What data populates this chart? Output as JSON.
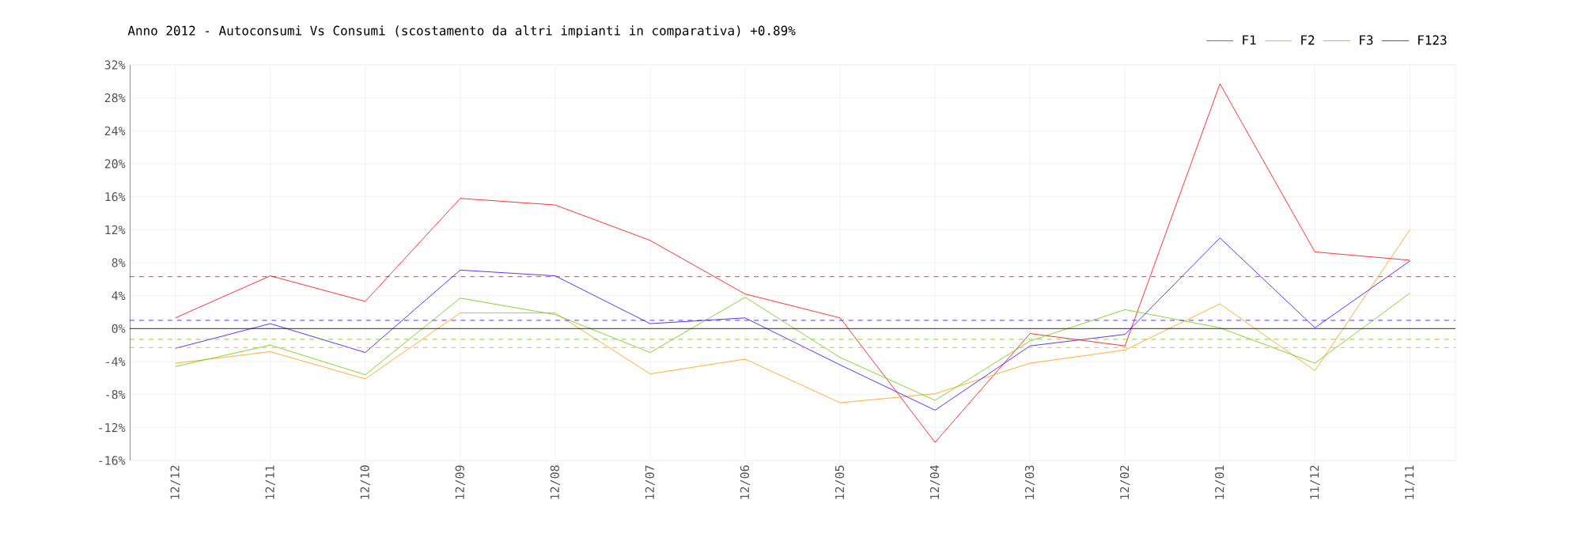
{
  "chart_data": {
    "type": "line",
    "title": "Anno 2012 - Autoconsumi Vs Consumi (scostamento da altri impianti in comparativa) +0.89%",
    "categories": [
      "12/12",
      "12/11",
      "12/10",
      "12/09",
      "12/08",
      "12/07",
      "12/06",
      "12/05",
      "12/04",
      "12/03",
      "12/02",
      "12/01",
      "11/12",
      "11/11"
    ],
    "series": [
      {
        "name": "F1",
        "color": "#ff0000",
        "values": [
          1.3,
          6.4,
          3.3,
          15.8,
          15.0,
          10.7,
          4.2,
          1.3,
          -13.8,
          -0.6,
          -2.1,
          29.7,
          9.3,
          8.3
        ]
      },
      {
        "name": "F2",
        "color": "#ff9900",
        "values": [
          -4.2,
          -2.8,
          -6.1,
          1.9,
          1.9,
          -5.5,
          -3.7,
          -9.0,
          -7.9,
          -4.2,
          -2.6,
          3.0,
          -5.1,
          12.0
        ]
      },
      {
        "name": "F3",
        "color": "#66cc00",
        "values": [
          -4.6,
          -2.0,
          -5.6,
          3.7,
          1.7,
          -2.9,
          3.8,
          -3.5,
          -8.7,
          -1.5,
          2.3,
          0.1,
          -4.2,
          4.3
        ]
      },
      {
        "name": "F123",
        "color": "#3300ff",
        "values": [
          -2.4,
          0.6,
          -2.9,
          7.1,
          6.4,
          0.6,
          1.3,
          -4.4,
          -9.9,
          -2.1,
          -0.7,
          11.0,
          0.1,
          8.2
        ]
      }
    ],
    "ref_lines": [
      {
        "axis": "y",
        "value": 6.3,
        "color": "#ff0000",
        "line_style": "dashed"
      },
      {
        "axis": "y",
        "value": 1.0,
        "color": "#3300ff",
        "line_style": "dashed"
      },
      {
        "axis": "y",
        "value": -1.3,
        "color": "#66cc00",
        "line_style": "dashed"
      },
      {
        "axis": "y",
        "value": -2.3,
        "color": "#ff9900",
        "line_style": "dashed"
      },
      {
        "axis": "y",
        "value": 0,
        "color": "#000000",
        "line_style": "solid"
      }
    ],
    "ylim": [
      -16,
      32
    ],
    "yticks": [
      {
        "value": -16,
        "label": "-16%"
      },
      {
        "value": -12,
        "label": "-12%"
      },
      {
        "value": -8,
        "label": "-8%"
      },
      {
        "value": -4,
        "label": "-4%"
      },
      {
        "value": 0,
        "label": "0%"
      },
      {
        "value": 4,
        "label": "4%"
      },
      {
        "value": 8,
        "label": "8%"
      },
      {
        "value": 12,
        "label": "12%"
      },
      {
        "value": 16,
        "label": "16%"
      },
      {
        "value": 20,
        "label": "20%"
      },
      {
        "value": 24,
        "label": "24%"
      },
      {
        "value": 28,
        "label": "28%"
      },
      {
        "value": 32,
        "label": "32%"
      }
    ],
    "grid": true,
    "legend": "top right",
    "marker": "none",
    "line_style": "solid"
  }
}
